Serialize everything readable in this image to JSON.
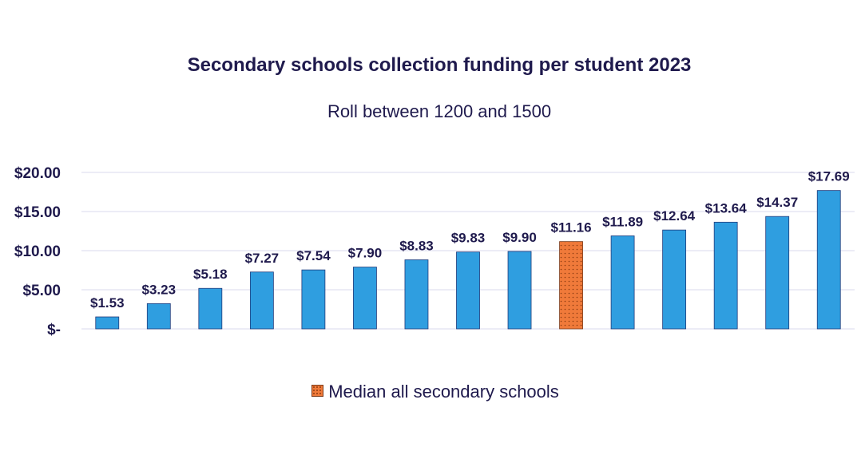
{
  "chart_data": {
    "type": "bar",
    "title": "Secondary schools collection funding per student 2023",
    "subtitle": "Roll between 1200 and 1500",
    "categories": [
      "",
      "",
      "",
      "",
      "",
      "",
      "",
      "",
      "",
      "",
      "",
      "",
      "",
      "",
      ""
    ],
    "values": [
      1.53,
      3.23,
      5.18,
      7.27,
      7.54,
      7.9,
      8.83,
      9.83,
      9.9,
      11.16,
      11.89,
      12.64,
      13.64,
      14.37,
      17.69
    ],
    "value_labels": [
      "$1.53",
      "$3.23",
      "$5.18",
      "$7.27",
      "$7.54",
      "$7.90",
      "$8.83",
      "$9.83",
      "$9.90",
      "$11.16",
      "$11.89",
      "$12.64",
      "$13.64",
      "$14.37",
      "$17.69"
    ],
    "highlight_index": 9,
    "ylim": [
      0,
      20
    ],
    "y_ticks": [
      0,
      5,
      10,
      15,
      20
    ],
    "y_tick_labels": [
      "$-",
      "$5.00",
      "$10.00",
      "$15.00",
      "$20.00"
    ],
    "grid": true,
    "legend": [
      {
        "label": "Median all secondary schools",
        "color": "#f07a3a",
        "pattern": "dotted"
      }
    ],
    "legend_position": "bottom",
    "colors": {
      "bar": "#2f9ee0",
      "bar_stroke": "#1f3a7a",
      "highlight": "#f07a3a",
      "highlight_dots": "#8a3a10",
      "grid": "#d9d9ee",
      "text": "#1f1a4d"
    }
  }
}
